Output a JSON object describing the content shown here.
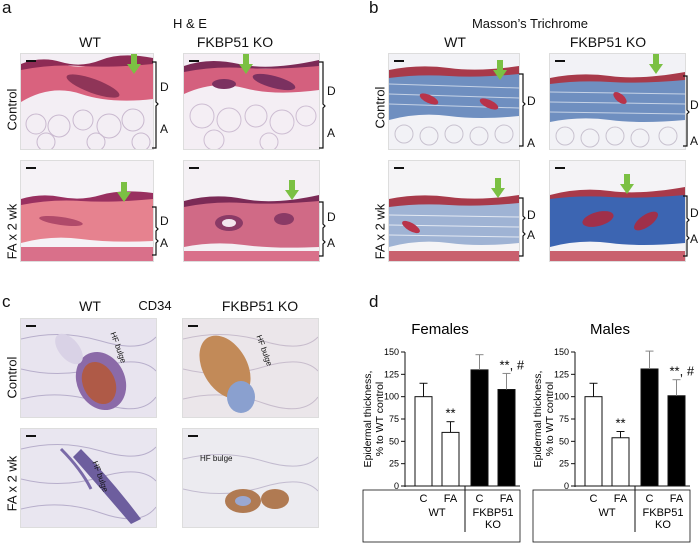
{
  "panels": {
    "a": {
      "letter": "a",
      "title": "H & E",
      "col_wt": "WT",
      "col_ko": "FKBP51 KO",
      "row_control": "Control",
      "row_fa": "FA x 2 wk",
      "layer_d": "D",
      "layer_a": "A"
    },
    "b": {
      "letter": "b",
      "title": "Masson’s Trichrome",
      "col_wt": "WT",
      "col_ko": "FKBP51 KO",
      "row_control": "Control",
      "row_fa": "FA x 2 wk",
      "layer_d": "D",
      "layer_a": "A"
    },
    "c": {
      "letter": "c",
      "title": "CD34",
      "col_wt": "WT",
      "col_ko": "FKBP51 KO",
      "row_control": "Control",
      "row_fa": "FA x 2 wk",
      "hf_bulge": "HF bulge"
    },
    "d": {
      "letter": "d"
    }
  },
  "chart_data": [
    {
      "type": "bar",
      "title": "Females",
      "ylabel": "Epidermal thickness, % to WT control",
      "ylim": [
        0,
        150
      ],
      "yticks": [
        0,
        25,
        50,
        75,
        100,
        125,
        150
      ],
      "categories": [
        "C",
        "FA",
        "C",
        "FA"
      ],
      "groups": [
        {
          "label": "WT",
          "span": [
            0,
            1
          ]
        },
        {
          "label": "FKBP51\nKO",
          "span": [
            2,
            3
          ]
        }
      ],
      "values": [
        100,
        60,
        130,
        108
      ],
      "errors": [
        15,
        12,
        17,
        18
      ],
      "fills": [
        "#ffffff",
        "#ffffff",
        "#000000",
        "#000000"
      ],
      "annotations": [
        "",
        "**",
        "",
        "**, #"
      ]
    },
    {
      "type": "bar",
      "title": "Males",
      "ylabel": "Epidermal thickness, % to WT control",
      "ylim": [
        0,
        150
      ],
      "yticks": [
        0,
        25,
        50,
        75,
        100,
        125,
        150
      ],
      "categories": [
        "C",
        "FA",
        "C",
        "FA"
      ],
      "groups": [
        {
          "label": "WT",
          "span": [
            0,
            1
          ]
        },
        {
          "label": "FKBP51\nKO",
          "span": [
            2,
            3
          ]
        }
      ],
      "values": [
        100,
        54,
        131,
        101
      ],
      "errors": [
        15,
        7,
        20,
        18
      ],
      "fills": [
        "#ffffff",
        "#ffffff",
        "#000000",
        "#000000"
      ],
      "annotations": [
        "",
        "**",
        "",
        "**, #"
      ]
    }
  ]
}
